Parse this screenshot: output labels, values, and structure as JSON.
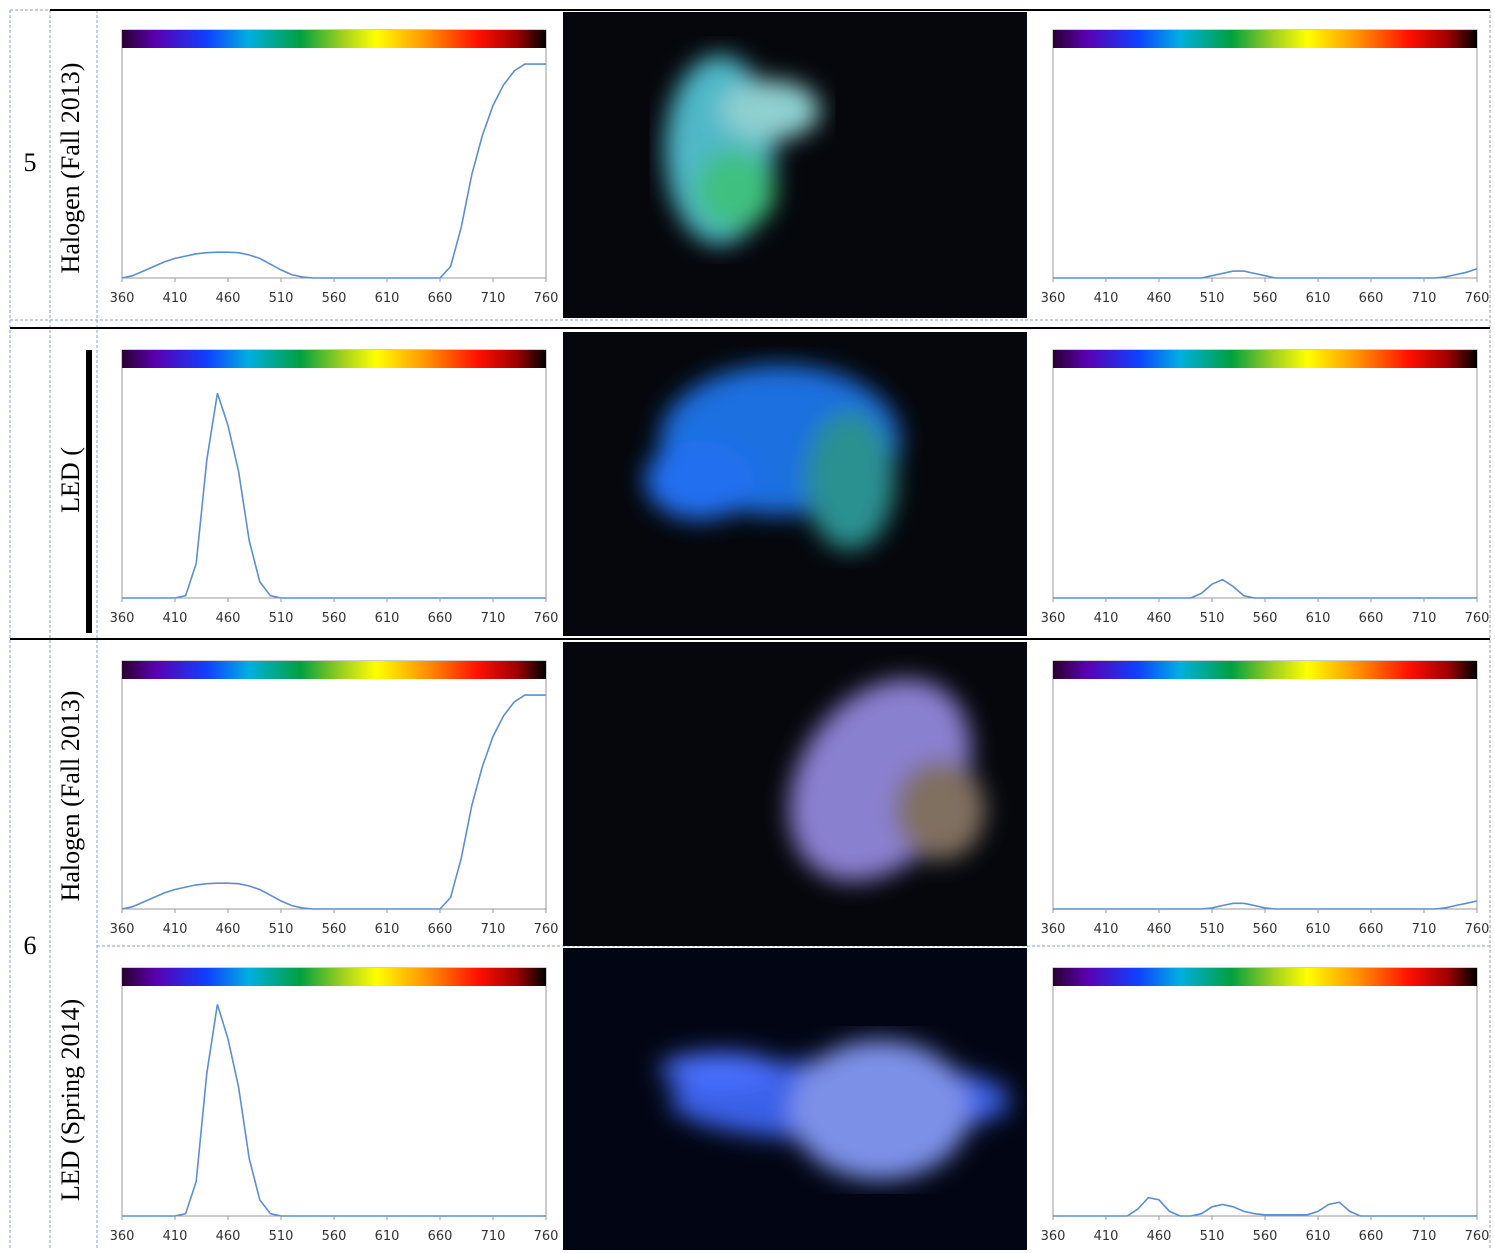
{
  "table": {
    "rows": [
      {
        "number": "5",
        "light": "Halogen (Fall 2013)"
      },
      {
        "light": "LED ("
      },
      {
        "number": "6",
        "light": "Halogen (Fall 2013)"
      },
      {
        "light": "LED (Spring 2014)"
      }
    ]
  },
  "chart_data": [
    {
      "type": "line",
      "x": [
        360,
        370,
        380,
        390,
        400,
        410,
        420,
        430,
        440,
        450,
        460,
        470,
        480,
        490,
        500,
        510,
        520,
        530,
        540,
        550,
        560,
        570,
        580,
        590,
        600,
        610,
        620,
        630,
        640,
        650,
        660,
        670,
        680,
        690,
        700,
        710,
        720,
        730,
        740,
        750,
        760
      ],
      "series": [
        {
          "color": "#5b8fd0",
          "values": [
            0,
            0.01,
            0.03,
            0.05,
            0.07,
            0.085,
            0.095,
            0.105,
            0.11,
            0.112,
            0.112,
            0.11,
            0.1,
            0.085,
            0.06,
            0.035,
            0.015,
            0.005,
            0,
            0,
            0,
            0,
            0,
            0,
            0,
            0,
            0,
            0,
            0,
            0,
            0,
            0.05,
            0.22,
            0.45,
            0.62,
            0.75,
            0.84,
            0.9,
            0.93,
            0.93,
            0.93
          ]
        }
      ],
      "xlim": [
        360,
        760
      ],
      "ylim": [
        0,
        1
      ],
      "xticks": [
        360,
        410,
        460,
        510,
        560,
        610,
        660,
        710,
        760
      ]
    },
    {
      "type": "line",
      "x": [
        360,
        370,
        380,
        390,
        400,
        410,
        420,
        430,
        440,
        450,
        460,
        470,
        480,
        490,
        500,
        510,
        520,
        530,
        540,
        550,
        560,
        570,
        580,
        590,
        600,
        610,
        620,
        630,
        640,
        650,
        660,
        670,
        680,
        690,
        700,
        710,
        720,
        730,
        740,
        750,
        760
      ],
      "series": [
        {
          "color": "#5b8fd0",
          "values": [
            0,
            0,
            0,
            0,
            0,
            0,
            0,
            0,
            0,
            0,
            0,
            0,
            0,
            0,
            0,
            0.01,
            0.02,
            0.03,
            0.03,
            0.02,
            0.01,
            0,
            0,
            0,
            0,
            0,
            0,
            0,
            0,
            0,
            0,
            0,
            0,
            0,
            0,
            0,
            0,
            0.005,
            0.015,
            0.025,
            0.04
          ]
        }
      ],
      "xlim": [
        360,
        760
      ],
      "ylim": [
        0,
        1
      ],
      "xticks": [
        360,
        410,
        460,
        510,
        560,
        610,
        660,
        710,
        760
      ]
    },
    {
      "type": "line",
      "x": [
        360,
        370,
        380,
        390,
        400,
        410,
        420,
        430,
        440,
        450,
        460,
        470,
        480,
        490,
        500,
        510,
        520,
        530,
        540,
        550,
        560,
        570,
        580,
        590,
        600,
        610,
        620,
        630,
        640,
        650,
        660,
        670,
        680,
        690,
        700,
        710,
        720,
        730,
        740,
        750,
        760
      ],
      "series": [
        {
          "color": "#5b8fd0",
          "values": [
            0,
            0,
            0,
            0,
            0,
            0,
            0.01,
            0.15,
            0.6,
            0.89,
            0.75,
            0.55,
            0.25,
            0.07,
            0.01,
            0,
            0,
            0,
            0,
            0,
            0,
            0,
            0,
            0,
            0,
            0,
            0,
            0,
            0,
            0,
            0,
            0,
            0,
            0,
            0,
            0,
            0,
            0,
            0,
            0,
            0
          ]
        }
      ],
      "xlim": [
        360,
        760
      ],
      "ylim": [
        0,
        1
      ],
      "xticks": [
        360,
        410,
        460,
        510,
        560,
        610,
        660,
        710,
        760
      ]
    },
    {
      "type": "line",
      "x": [
        360,
        370,
        380,
        390,
        400,
        410,
        420,
        430,
        440,
        450,
        460,
        470,
        480,
        490,
        500,
        510,
        520,
        530,
        540,
        550,
        560,
        570,
        580,
        590,
        600,
        610,
        620,
        630,
        640,
        650,
        660,
        670,
        680,
        690,
        700,
        710,
        720,
        730,
        740,
        750,
        760
      ],
      "series": [
        {
          "color": "#5b8fd0",
          "values": [
            0,
            0,
            0,
            0,
            0,
            0,
            0,
            0,
            0,
            0,
            0,
            0,
            0,
            0,
            0.02,
            0.06,
            0.08,
            0.05,
            0.01,
            0,
            0,
            0,
            0,
            0,
            0,
            0,
            0,
            0,
            0,
            0,
            0,
            0,
            0,
            0,
            0,
            0,
            0,
            0,
            0,
            0,
            0
          ]
        }
      ],
      "xlim": [
        360,
        760
      ],
      "ylim": [
        0,
        1
      ],
      "xticks": [
        360,
        410,
        460,
        510,
        560,
        610,
        660,
        710,
        760
      ]
    },
    {
      "type": "line",
      "x": [
        360,
        370,
        380,
        390,
        400,
        410,
        420,
        430,
        440,
        450,
        460,
        470,
        480,
        490,
        500,
        510,
        520,
        530,
        540,
        550,
        560,
        570,
        580,
        590,
        600,
        610,
        620,
        630,
        640,
        650,
        660,
        670,
        680,
        690,
        700,
        710,
        720,
        730,
        740,
        750,
        760
      ],
      "series": [
        {
          "color": "#5b8fd0",
          "values": [
            0,
            0.01,
            0.03,
            0.05,
            0.07,
            0.085,
            0.095,
            0.105,
            0.11,
            0.112,
            0.112,
            0.11,
            0.1,
            0.085,
            0.06,
            0.035,
            0.015,
            0.005,
            0,
            0,
            0,
            0,
            0,
            0,
            0,
            0,
            0,
            0,
            0,
            0,
            0,
            0.05,
            0.22,
            0.45,
            0.62,
            0.75,
            0.84,
            0.9,
            0.93,
            0.93,
            0.93
          ]
        }
      ],
      "xlim": [
        360,
        760
      ],
      "ylim": [
        0,
        1
      ],
      "xticks": [
        360,
        410,
        460,
        510,
        560,
        610,
        660,
        710,
        760
      ]
    },
    {
      "type": "line",
      "x": [
        360,
        370,
        380,
        390,
        400,
        410,
        420,
        430,
        440,
        450,
        460,
        470,
        480,
        490,
        500,
        510,
        520,
        530,
        540,
        550,
        560,
        570,
        580,
        590,
        600,
        610,
        620,
        630,
        640,
        650,
        660,
        670,
        680,
        690,
        700,
        710,
        720,
        730,
        740,
        750,
        760
      ],
      "series": [
        {
          "color": "#5b8fd0",
          "values": [
            0,
            0,
            0,
            0,
            0,
            0,
            0,
            0,
            0,
            0,
            0,
            0,
            0,
            0,
            0,
            0.005,
            0.015,
            0.025,
            0.025,
            0.015,
            0.005,
            0,
            0,
            0,
            0,
            0,
            0,
            0,
            0,
            0,
            0,
            0,
            0,
            0,
            0,
            0,
            0,
            0.005,
            0.015,
            0.025,
            0.035
          ]
        }
      ],
      "xlim": [
        360,
        760
      ],
      "ylim": [
        0,
        1
      ],
      "xticks": [
        360,
        410,
        460,
        510,
        560,
        610,
        660,
        710,
        760
      ]
    },
    {
      "type": "line",
      "x": [
        360,
        370,
        380,
        390,
        400,
        410,
        420,
        430,
        440,
        450,
        460,
        470,
        480,
        490,
        500,
        510,
        520,
        530,
        540,
        550,
        560,
        570,
        580,
        590,
        600,
        610,
        620,
        630,
        640,
        650,
        660,
        670,
        680,
        690,
        700,
        710,
        720,
        730,
        740,
        750,
        760
      ],
      "series": [
        {
          "color": "#5b8fd0",
          "values": [
            0,
            0,
            0,
            0,
            0,
            0,
            0.01,
            0.15,
            0.62,
            0.92,
            0.77,
            0.56,
            0.25,
            0.07,
            0.01,
            0,
            0,
            0,
            0,
            0,
            0,
            0,
            0,
            0,
            0,
            0,
            0,
            0,
            0,
            0,
            0,
            0,
            0,
            0,
            0,
            0,
            0,
            0,
            0,
            0,
            0
          ]
        }
      ],
      "xlim": [
        360,
        760
      ],
      "ylim": [
        0,
        1
      ],
      "xticks": [
        360,
        410,
        460,
        510,
        560,
        610,
        660,
        710,
        760
      ]
    },
    {
      "type": "line",
      "x": [
        360,
        370,
        380,
        390,
        400,
        410,
        420,
        430,
        440,
        450,
        460,
        470,
        480,
        490,
        500,
        510,
        520,
        530,
        540,
        550,
        560,
        570,
        580,
        590,
        600,
        610,
        620,
        630,
        640,
        650,
        660,
        670,
        680,
        690,
        700,
        710,
        720,
        730,
        740,
        750,
        760
      ],
      "series": [
        {
          "color": "#5b8fd0",
          "values": [
            0,
            0,
            0,
            0,
            0,
            0,
            0,
            0,
            0.03,
            0.08,
            0.07,
            0.02,
            0,
            0,
            0.01,
            0.04,
            0.05,
            0.04,
            0.02,
            0.01,
            0.005,
            0.005,
            0.005,
            0.005,
            0.005,
            0.02,
            0.05,
            0.06,
            0.02,
            0,
            0,
            0,
            0,
            0,
            0,
            0,
            0,
            0,
            0,
            0,
            0
          ]
        }
      ],
      "xlim": [
        360,
        760
      ],
      "ylim": [
        0,
        1
      ],
      "xticks": [
        360,
        410,
        460,
        510,
        560,
        610,
        660,
        710,
        760
      ]
    }
  ]
}
